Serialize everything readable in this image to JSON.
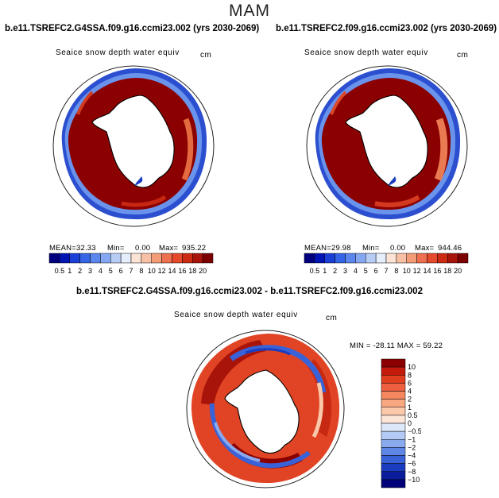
{
  "season": "MAM",
  "field": "Seaice snow depth water equiv",
  "units": "cm",
  "panels": [
    {
      "title": "b.e11.TSREFC2.G4SSA.f09.g16.ccmi23.002 (yrs 2030-2069)",
      "mean_label": "MEAN=",
      "mean": "32.33",
      "min_label": "Min=",
      "min": "0.00",
      "max_label": "Max=",
      "max": "935.22"
    },
    {
      "title": "b.e11.TSREFC2.f09.g16.ccmi23.002 (yrs 2030-2069)",
      "mean_label": "MEAN=",
      "mean": "29.98",
      "min_label": "Min=",
      "min": "0.00",
      "max_label": "Max=",
      "max": "944.46"
    }
  ],
  "difference": {
    "title": "b.e11.TSREFC2.G4SSA.f09.g16.ccmi23.002 - b.e11.TSREFC2.f09.g16.ccmi23.002",
    "stats": "MIN = -28.11 MAX =  59.22"
  },
  "colorbar_abs": {
    "labels": [
      "0.5",
      "1",
      "2",
      "3",
      "4",
      "5",
      "6",
      "7",
      "8",
      "10",
      "12",
      "14",
      "16",
      "18",
      "20"
    ],
    "colors": [
      "#00007f",
      "#0014b4",
      "#1a3fd6",
      "#3565e6",
      "#5a86ee",
      "#86a8f2",
      "#b8cdf6",
      "#e6eefb",
      "#fbe3d6",
      "#f8c0a5",
      "#f49b78",
      "#ee7050",
      "#e54a2c",
      "#cd2a14",
      "#a8140a",
      "#7c0000"
    ]
  },
  "colorbar_diff": {
    "labels": [
      "10",
      "8",
      "6",
      "4",
      "2",
      "1",
      "0.5",
      "0",
      "−0.5",
      "−1",
      "−2",
      "−4",
      "−6",
      "−8",
      "−10"
    ],
    "colors": [
      "#8a0000",
      "#c41a0c",
      "#e03c1e",
      "#ee6040",
      "#f4875e",
      "#f8a880",
      "#fbc8aa",
      "#fde6d8",
      "#dde8fb",
      "#b3cbf4",
      "#8aaaee",
      "#5e86e6",
      "#3a62d8",
      "#1a3cc0",
      "#0a1c9a",
      "#00007a"
    ]
  }
}
